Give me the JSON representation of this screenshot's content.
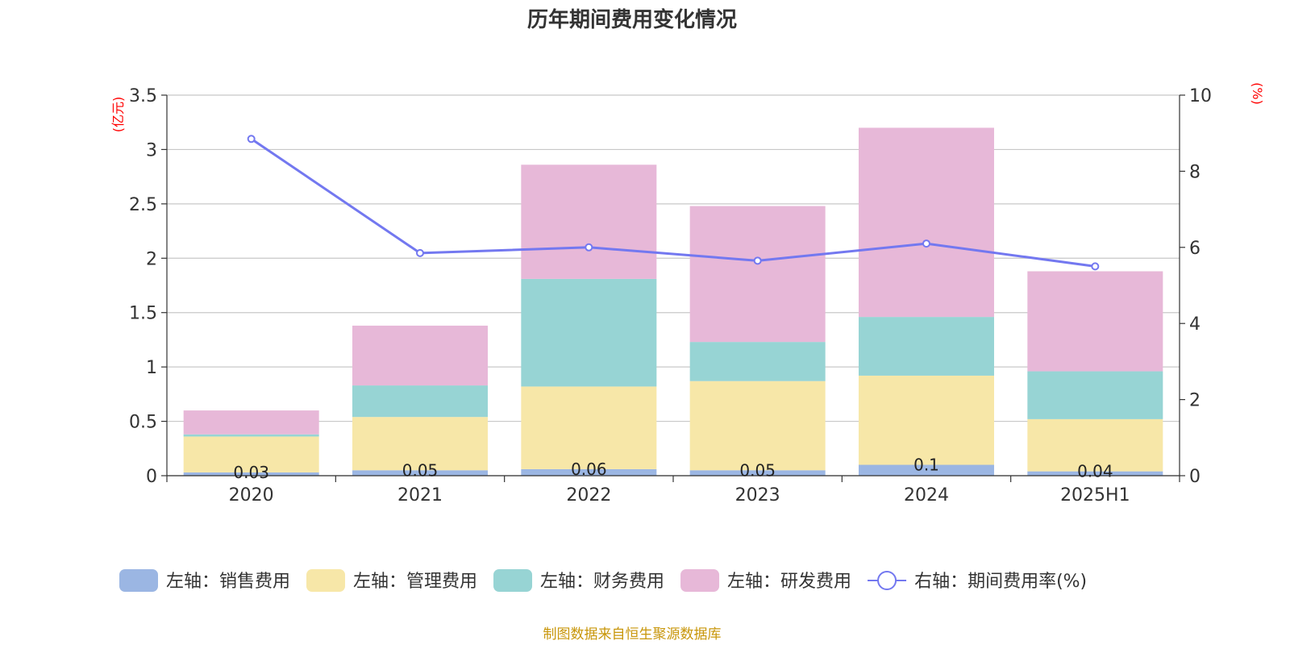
{
  "chart_data": {
    "type": "bar",
    "title": "历年期间费用变化情况",
    "categories": [
      "2020",
      "2021",
      "2022",
      "2023",
      "2024",
      "2025H1"
    ],
    "left_axis": {
      "unit": "(亿元)",
      "ylim": [
        0,
        3.5
      ],
      "ticks": [
        "0",
        "0.5",
        "1",
        "1.5",
        "2",
        "2.5",
        "3",
        "3.5"
      ]
    },
    "right_axis": {
      "unit": "(%)",
      "ylim": [
        0,
        10
      ],
      "ticks": [
        "0",
        "2",
        "4",
        "6",
        "8",
        "10"
      ]
    },
    "stacked": true,
    "series": [
      {
        "name": "左轴：销售费用",
        "type": "bar",
        "axis": "left",
        "color": "#9bb6e3",
        "values": [
          0.03,
          0.05,
          0.06,
          0.05,
          0.1,
          0.04
        ],
        "labels": [
          "0.03",
          "0.05",
          "0.06",
          "0.05",
          "0.1",
          "0.04"
        ]
      },
      {
        "name": "左轴：管理费用",
        "type": "bar",
        "axis": "left",
        "color": "#f7e7a8",
        "values": [
          0.33,
          0.49,
          0.76,
          0.82,
          0.82,
          0.48
        ]
      },
      {
        "name": "左轴：财务费用",
        "type": "bar",
        "axis": "left",
        "color": "#97d4d4",
        "values": [
          0.02,
          0.29,
          0.99,
          0.36,
          0.54,
          0.44
        ]
      },
      {
        "name": "左轴：研发费用",
        "type": "bar",
        "axis": "left",
        "color": "#e7b8d8",
        "values": [
          0.22,
          0.55,
          1.05,
          1.25,
          1.74,
          0.92
        ]
      },
      {
        "name": "右轴：期间费用率(%)",
        "type": "line",
        "axis": "right",
        "color": "#7378f0",
        "values": [
          8.85,
          5.85,
          6.0,
          5.65,
          6.1,
          5.5
        ]
      }
    ],
    "grid": true,
    "legend": "bottom"
  },
  "footer": {
    "source": "制图数据来自恒生聚源数据库"
  }
}
